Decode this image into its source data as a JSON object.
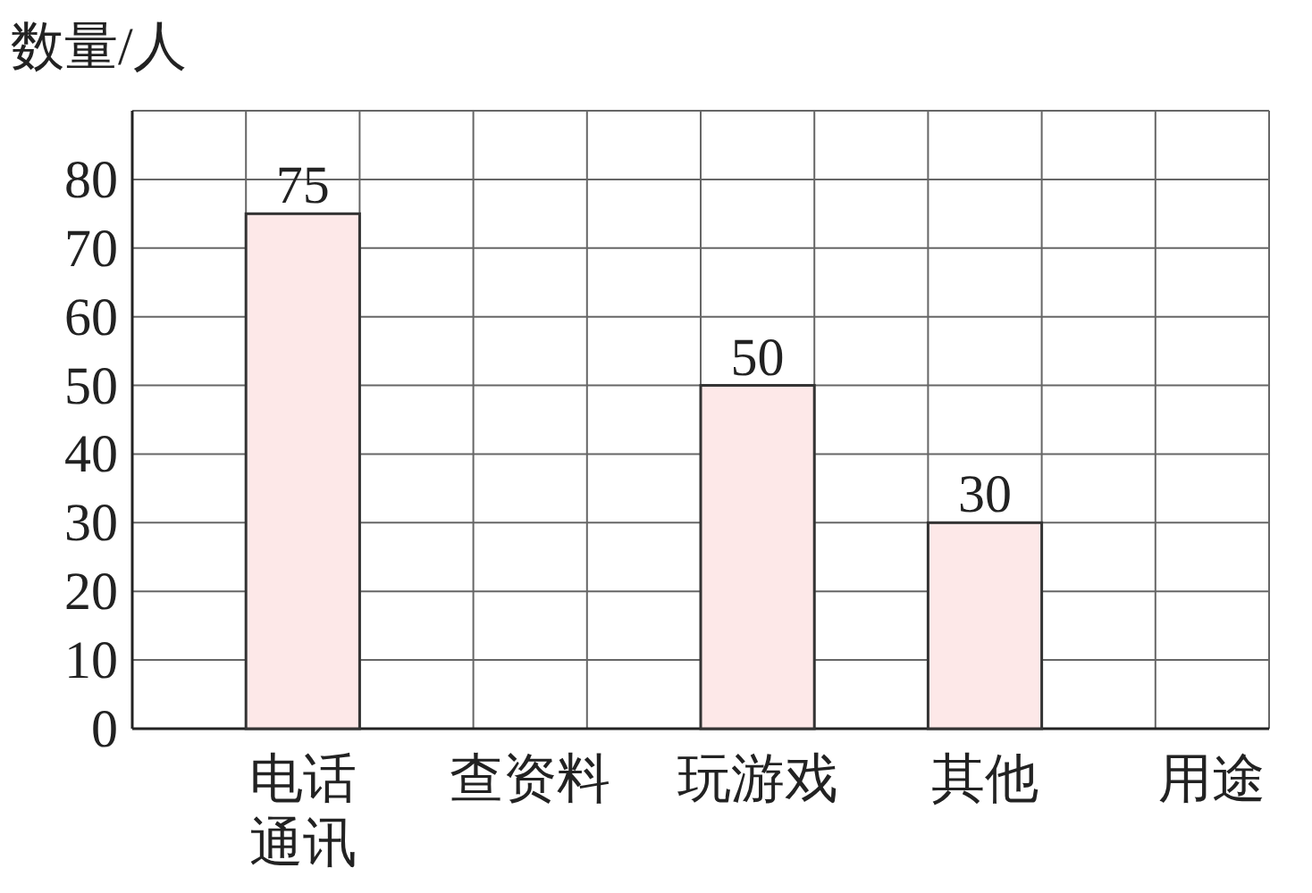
{
  "chart_data": {
    "type": "bar",
    "ylabel": "数量/人",
    "xlabel": "用途",
    "categories": [
      "电话通讯",
      "查资料",
      "玩游戏",
      "其他"
    ],
    "values": [
      75,
      null,
      50,
      30
    ],
    "color": "#fde8e8",
    "data_labels": true,
    "ylim": [
      0,
      90
    ],
    "yticks": [
      0,
      10,
      20,
      30,
      40,
      50,
      60,
      70,
      80
    ],
    "grid": true
  }
}
